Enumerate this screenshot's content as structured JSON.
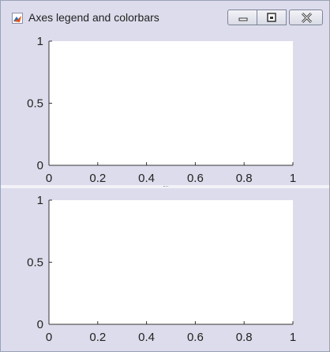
{
  "window": {
    "title": "Axes legend and colorbars",
    "icon": "matlab-figure-icon",
    "controls": [
      "minimize-icon",
      "restore-icon",
      "close-icon"
    ]
  },
  "axes_top": {
    "xticks": [
      "0",
      "0.2",
      "0.4",
      "0.6",
      "0.8",
      "1"
    ],
    "yticks": [
      "0",
      "0.5",
      "1"
    ],
    "xlim": [
      0,
      1
    ],
    "ylim": [
      0,
      1
    ]
  },
  "axes_bottom": {
    "xticks": [
      "0",
      "0.2",
      "0.4",
      "0.6",
      "0.8",
      "1"
    ],
    "yticks": [
      "0",
      "0.5",
      "1"
    ],
    "xlim": [
      0,
      1
    ],
    "ylim": [
      0,
      1
    ]
  },
  "colors": {
    "window_bg": "#dcdcec",
    "plot_bg": "#ffffff",
    "axis": "#333333"
  }
}
